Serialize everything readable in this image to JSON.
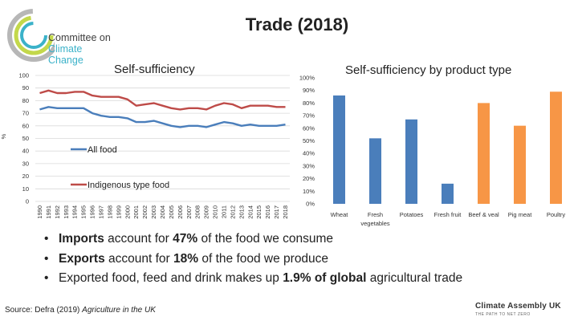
{
  "slide": {
    "title": "Trade (2018)",
    "logo_line1": "Committee on",
    "logo_line2": "Climate Change",
    "source_prefix": "Source: Defra (2019) ",
    "source_title": "Agriculture in the UK",
    "footer_brand": "Climate Assembly UK",
    "footer_tagline": "THE PATH TO NET ZERO",
    "bullets": [
      {
        "pre": "",
        "bold": "Imports",
        "mid": " account for ",
        "bold2": "47%",
        "post": " of the food we consume"
      },
      {
        "pre": "",
        "bold": "Exports",
        "mid": " account for ",
        "bold2": "18%",
        "post": " of the food we produce"
      },
      {
        "pre": "Exported food, feed and drink makes up ",
        "bold": "1.9% of global",
        "mid": " agricultural trade",
        "bold2": "",
        "post": ""
      }
    ],
    "colors": {
      "blue": "#4a7ebb",
      "red": "#be4b48",
      "orange": "#f79646",
      "grid": "#d9d9d9"
    }
  },
  "chart_data": [
    {
      "type": "line",
      "title": "Self-sufficiency",
      "ylabel": "%",
      "ylim": [
        0,
        100
      ],
      "yticks": [
        0,
        10,
        20,
        30,
        40,
        50,
        60,
        70,
        80,
        90,
        100
      ],
      "grid": true,
      "x": [
        "1990",
        "1991",
        "1992",
        "1993",
        "1994",
        "1995",
        "1996",
        "1997",
        "1998",
        "1999",
        "2000",
        "2001",
        "2002",
        "2003",
        "2004",
        "2005",
        "2006",
        "2007",
        "2008",
        "2009",
        "2010",
        "2011",
        "2012",
        "2013",
        "2014",
        "2015",
        "2016",
        "2017",
        "2018"
      ],
      "series": [
        {
          "name": "All food",
          "color": "#4a7ebb",
          "values": [
            73,
            75,
            74,
            74,
            74,
            74,
            70,
            68,
            67,
            67,
            66,
            63,
            63,
            64,
            62,
            60,
            59,
            60,
            60,
            59,
            61,
            63,
            62,
            60,
            61,
            60,
            60,
            60,
            61
          ]
        },
        {
          "name": "Indigenous type food",
          "color": "#be4b48",
          "values": [
            86,
            88,
            86,
            86,
            87,
            87,
            84,
            83,
            83,
            83,
            81,
            76,
            77,
            78,
            76,
            74,
            73,
            74,
            74,
            73,
            76,
            78,
            77,
            74,
            76,
            76,
            76,
            75,
            75
          ]
        }
      ]
    },
    {
      "type": "bar",
      "title": "Self-sufficiency by product type",
      "ylim": [
        0,
        100
      ],
      "yticks": [
        "0%",
        "10%",
        "20%",
        "30%",
        "40%",
        "50%",
        "60%",
        "70%",
        "80%",
        "90%",
        "100%"
      ],
      "grid": false,
      "categories": [
        "Wheat",
        "Fresh vegetables",
        "Potatoes",
        "Fresh fruit",
        "Beef & veal",
        "Pig meat",
        "Poultry"
      ],
      "values": [
        86,
        52,
        67,
        16,
        80,
        62,
        89
      ],
      "colors": [
        "#4a7ebb",
        "#4a7ebb",
        "#4a7ebb",
        "#4a7ebb",
        "#f79646",
        "#f79646",
        "#f79646"
      ]
    }
  ]
}
